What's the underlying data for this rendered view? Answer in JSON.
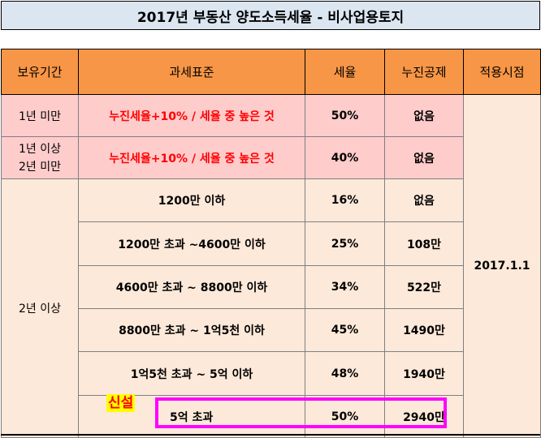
{
  "title": "2017년 부동산 양도소득세율 - 비사업용토지",
  "headers": {
    "holding_period": "보유기간",
    "tax_base": "과세표준",
    "tax_rate": "세율",
    "progressive_deduction": "누진공제",
    "effective_date": "적용시점"
  },
  "rows": [
    {
      "period": "1년 미만",
      "base": "누진세율+10% / 세율 중 높은 것",
      "rate": "50%",
      "deduction": "없음"
    },
    {
      "period_line1": "1년 이상",
      "period_line2": "2년 미만",
      "base": "누진세율+10% / 세율 중 높은 것",
      "rate": "40%",
      "deduction": "없음"
    },
    {
      "period": "2년 이상",
      "base": "1200만 이하",
      "rate": "16%",
      "deduction": "없음"
    },
    {
      "base": "1200만 초과 ~4600만 이하",
      "rate": "25%",
      "deduction": "108만"
    },
    {
      "base": "4600만 초과 ~ 8800만 이하",
      "rate": "34%",
      "deduction": "522만"
    },
    {
      "base": "8800만 초과 ~ 1억5천 이하",
      "rate": "45%",
      "deduction": "1490만"
    },
    {
      "base": "1억5천 초과 ~ 5억 이하",
      "rate": "48%",
      "deduction": "1940만"
    },
    {
      "base": "5억 초과",
      "rate": "50%",
      "deduction": "2940만"
    }
  ],
  "effective_date": "2017.1.1",
  "new_badge": "신설",
  "colors": {
    "title_bg": "#dce6f1",
    "header_bg": "#f79646",
    "pink_bg": "#ffcccc",
    "peach_bg": "#fde9d9",
    "highlight_border": "#ff00ff",
    "red_text": "#ff0000",
    "badge_bg": "#ffff00"
  }
}
